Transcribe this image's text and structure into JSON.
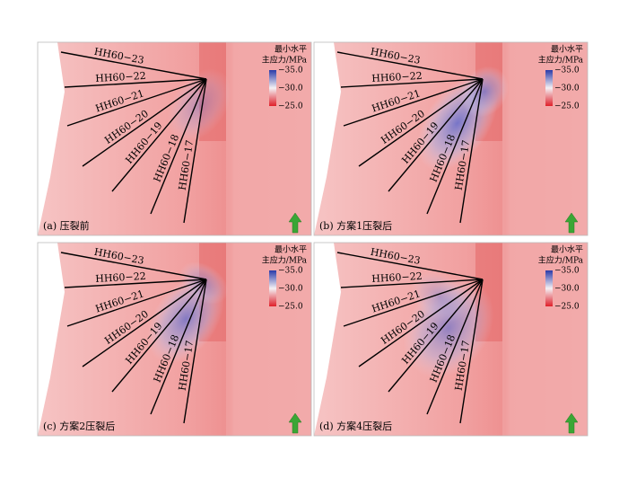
{
  "panels": [
    {
      "caption": "(a) 压裂前",
      "legend_title": [
        "最小水平",
        "主应力/MPa"
      ],
      "legend_ticks": [
        "−35.0",
        "−30.0",
        "−25.0"
      ],
      "wells": [
        "HH60−23",
        "HH60−22",
        "HH60−21",
        "HH60−20",
        "HH60−19",
        "HH60−18",
        "HH60−17"
      ]
    },
    {
      "caption": "(b) 方案1压裂后",
      "legend_title": [
        "最小水平",
        "主应力/MPa"
      ],
      "legend_ticks": [
        "−35.0",
        "−30.0",
        "−25.0"
      ],
      "wells": [
        "HH60−23",
        "HH60−22",
        "HH60−21",
        "HH60−20",
        "HH60−19",
        "HH60−18",
        "HH60−17"
      ]
    },
    {
      "caption": "(c) 方案2压裂后",
      "legend_title": [
        "最小水平",
        "主应力/MPa"
      ],
      "legend_ticks": [
        "−35.0",
        "−30.0",
        "−25.0"
      ],
      "wells": [
        "HH60−23",
        "HH60−22",
        "HH60−21",
        "HH60−20",
        "HH60−19",
        "HH60−18",
        "HH60−17"
      ]
    },
    {
      "caption": "(d) 方案4压裂后",
      "legend_title": [
        "最小水平",
        "主应力/MPa"
      ],
      "legend_ticks": [
        "−35.0",
        "−30.0",
        "−25.0"
      ],
      "wells": [
        "HH60−23",
        "HH60−22",
        "HH60−21",
        "HH60−20",
        "HH60−19",
        "HH60−18",
        "HH60−17"
      ]
    }
  ]
}
